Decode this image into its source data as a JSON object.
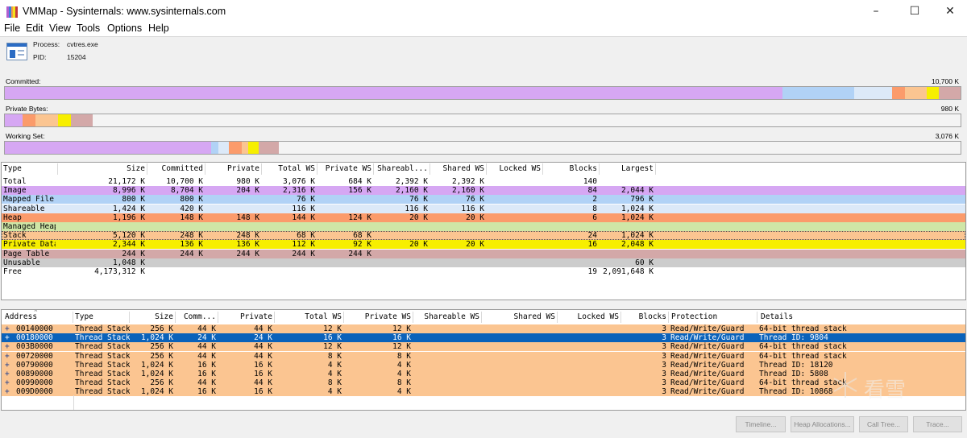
{
  "window": {
    "title": "VMMap - Sysinternals: www.sysinternals.com"
  },
  "menu": [
    "File",
    "Edit",
    "View",
    "Tools",
    "Options",
    "Help"
  ],
  "process": {
    "process_label": "Process:",
    "process_value": "cvtres.exe",
    "pid_label": "PID:",
    "pid_value": "15204"
  },
  "bars": {
    "committed": {
      "label": "Committed:",
      "value": "10,700 K"
    },
    "private": {
      "label": "Private Bytes:",
      "value": "980 K"
    },
    "working": {
      "label": "Working Set:",
      "value": "3,076 K"
    }
  },
  "colors": {
    "image": "#d6a7f3",
    "mapped": "#b1d2f6",
    "shareable": "#dce9f8",
    "heap": "#fb9b6b",
    "managed": "#cfe6a6",
    "stack": "#fbc591",
    "private_data": "#f7ef00",
    "page_table": "#d3a8a8",
    "unusable": "#cccccc",
    "selection": "#0a62ba"
  },
  "summary": {
    "headers": [
      "Type",
      "Size",
      "Committed",
      "Private",
      "Total WS",
      "Private WS",
      "Shareabl...",
      "Shared WS",
      "Locked WS",
      "Blocks",
      "Largest"
    ],
    "rows": [
      {
        "cells": [
          "Total",
          "21,172 K",
          "10,700 K",
          "980 K",
          "3,076 K",
          "684 K",
          "2,392 K",
          "2,392 K",
          "",
          "140",
          ""
        ],
        "color": ""
      },
      {
        "cells": [
          "Image",
          "8,996 K",
          "8,704 K",
          "204 K",
          "2,316 K",
          "156 K",
          "2,160 K",
          "2,160 K",
          "",
          "84",
          "2,044 K"
        ],
        "color": "image"
      },
      {
        "cells": [
          "Mapped File",
          "800 K",
          "800 K",
          "",
          "76 K",
          "",
          "76 K",
          "76 K",
          "",
          "2",
          "796 K"
        ],
        "color": "mapped"
      },
      {
        "cells": [
          "Shareable",
          "1,424 K",
          "420 K",
          "",
          "116 K",
          "",
          "116 K",
          "116 K",
          "",
          "8",
          "1,024 K"
        ],
        "color": "shareable"
      },
      {
        "cells": [
          "Heap",
          "1,196 K",
          "148 K",
          "148 K",
          "144 K",
          "124 K",
          "20 K",
          "20 K",
          "",
          "6",
          "1,024 K"
        ],
        "color": "heap"
      },
      {
        "cells": [
          "Managed Heap",
          "",
          "",
          "",
          "",
          "",
          "",
          "",
          "",
          "",
          ""
        ],
        "color": "managed"
      },
      {
        "cells": [
          "Stack",
          "5,120 K",
          "248 K",
          "248 K",
          "68 K",
          "68 K",
          "",
          "",
          "",
          "24",
          "1,024 K"
        ],
        "color": "stack"
      },
      {
        "cells": [
          "Private Data",
          "2,344 K",
          "136 K",
          "136 K",
          "112 K",
          "92 K",
          "20 K",
          "20 K",
          "",
          "16",
          "2,048 K"
        ],
        "color": "private_data"
      },
      {
        "cells": [
          "Page Table",
          "244 K",
          "244 K",
          "244 K",
          "244 K",
          "244 K",
          "",
          "",
          "",
          "",
          ""
        ],
        "color": "page_table"
      },
      {
        "cells": [
          "Unusable",
          "1,048 K",
          "",
          "",
          "",
          "",
          "",
          "",
          "",
          "",
          "60 K"
        ],
        "color": "unusable"
      },
      {
        "cells": [
          "Free",
          "4,173,312 K",
          "",
          "",
          "",
          "",
          "",
          "",
          "",
          "19",
          "2,091,648 K"
        ],
        "color": ""
      }
    ]
  },
  "details": {
    "headers": [
      "Address",
      "Type",
      "Size",
      "Comm...",
      "Private",
      "Total WS",
      "Private WS",
      "Shareable WS",
      "Shared WS",
      "Locked WS",
      "Blocks",
      "Protection",
      "Details"
    ],
    "rows": [
      {
        "cells": [
          "00140000",
          "Thread Stack",
          "256 K",
          "44 K",
          "44 K",
          "12 K",
          "12 K",
          "",
          "",
          "",
          "3",
          "Read/Write/Guard",
          "64-bit thread stack"
        ],
        "selected": false
      },
      {
        "cells": [
          "00180000",
          "Thread Stack",
          "1,024 K",
          "24 K",
          "24 K",
          "16 K",
          "16 K",
          "",
          "",
          "",
          "3",
          "Read/Write/Guard",
          "Thread ID: 9804"
        ],
        "selected": true
      },
      {
        "cells": [
          "003B0000",
          "Thread Stack",
          "256 K",
          "44 K",
          "44 K",
          "12 K",
          "12 K",
          "",
          "",
          "",
          "3",
          "Read/Write/Guard",
          "64-bit thread stack"
        ],
        "selected": false
      },
      {
        "cells": [
          "00720000",
          "Thread Stack",
          "256 K",
          "44 K",
          "44 K",
          "8 K",
          "8 K",
          "",
          "",
          "",
          "3",
          "Read/Write/Guard",
          "64-bit thread stack"
        ],
        "selected": false
      },
      {
        "cells": [
          "00790000",
          "Thread Stack",
          "1,024 K",
          "16 K",
          "16 K",
          "4 K",
          "4 K",
          "",
          "",
          "",
          "3",
          "Read/Write/Guard",
          "Thread ID: 18120"
        ],
        "selected": false
      },
      {
        "cells": [
          "00890000",
          "Thread Stack",
          "1,024 K",
          "16 K",
          "16 K",
          "4 K",
          "4 K",
          "",
          "",
          "",
          "3",
          "Read/Write/Guard",
          "Thread ID: 5808"
        ],
        "selected": false
      },
      {
        "cells": [
          "00990000",
          "Thread Stack",
          "256 K",
          "44 K",
          "44 K",
          "8 K",
          "8 K",
          "",
          "",
          "",
          "3",
          "Read/Write/Guard",
          "64-bit thread stack"
        ],
        "selected": false
      },
      {
        "cells": [
          "009D0000",
          "Thread Stack",
          "1,024 K",
          "16 K",
          "16 K",
          "4 K",
          "4 K",
          "",
          "",
          "",
          "3",
          "Read/Write/Guard",
          "Thread ID: 10868"
        ],
        "selected": false
      }
    ]
  },
  "buttons": {
    "timeline": "Timeline...",
    "heap": "Heap Allocations...",
    "calltree": "Call Tree...",
    "trace": "Trace..."
  },
  "watermark": {
    "text": "看雪"
  }
}
